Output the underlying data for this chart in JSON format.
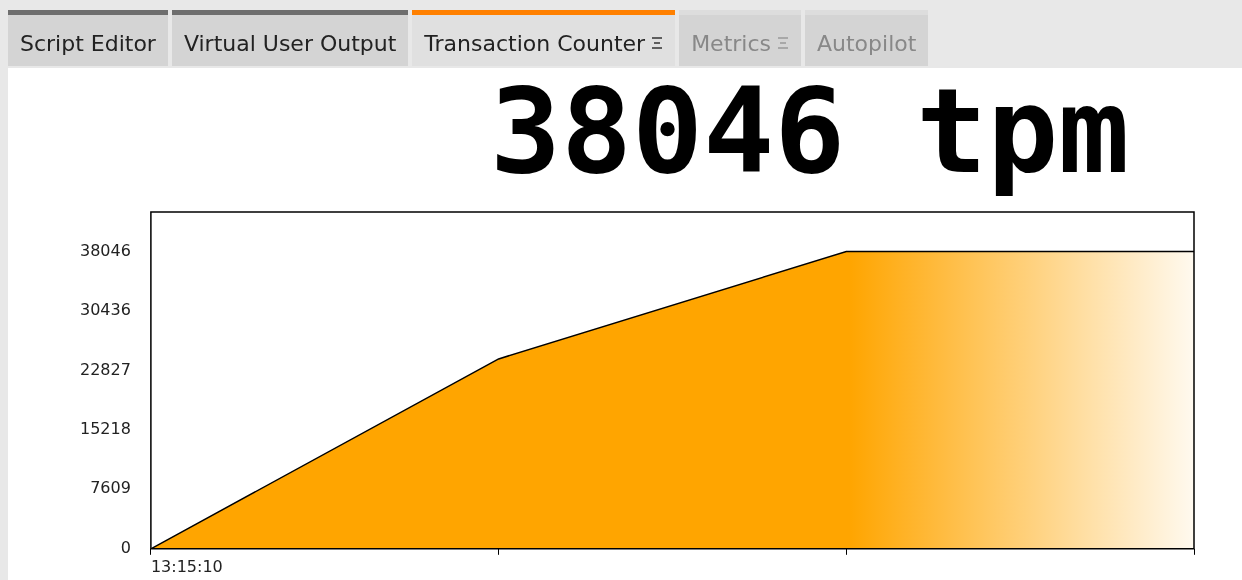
{
  "chart_data": {
    "type": "area",
    "title": "38046 tpm",
    "annotations": [
      "Script Editor",
      "Virtual User Output",
      "Transaction Counter",
      "Metrics",
      "Autopilot"
    ],
    "categories": [
      "13:15:10",
      null,
      null,
      null
    ],
    "series": [
      {
        "color": "#ffa500",
        "values": [
          0,
          24300,
          38046,
          38046
        ]
      }
    ],
    "ylim": [
      0,
      43100
    ],
    "yticks": [
      0,
      7609,
      15218,
      22827,
      30436,
      38046
    ],
    "grid": false,
    "legend": false,
    "marker": "none"
  }
}
